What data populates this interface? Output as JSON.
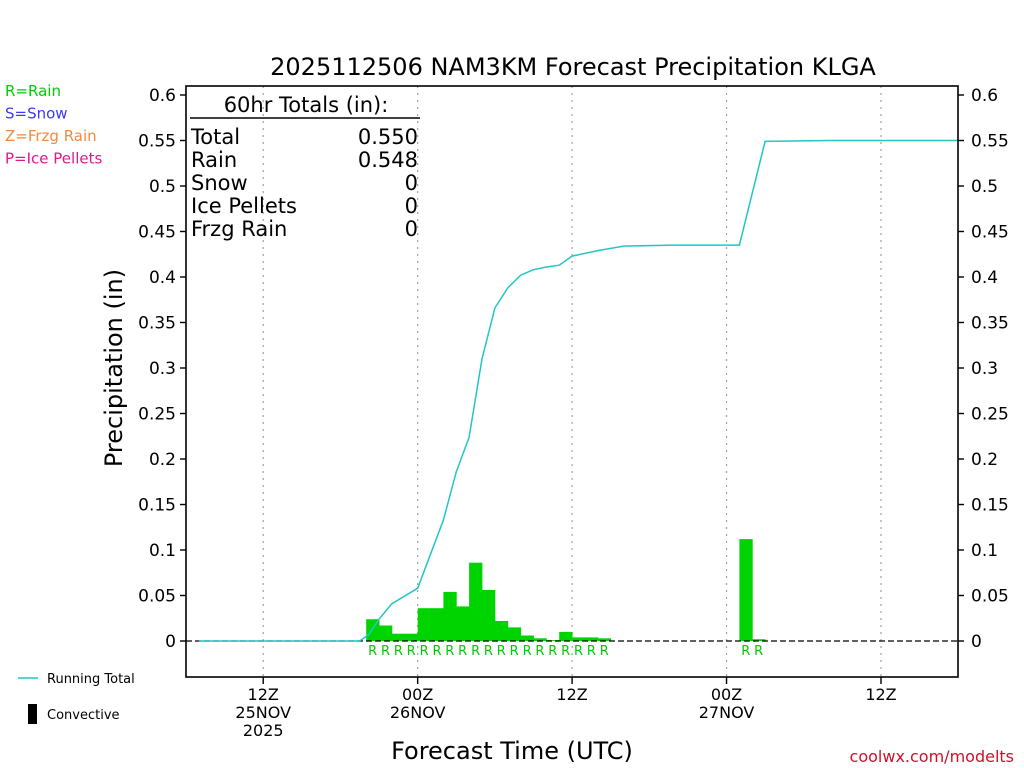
{
  "chart_data": {
    "type": "bar",
    "title": "2025112506 NAM3KM Forecast Precipitation KLGA",
    "xlabel": "Forecast Time (UTC)",
    "ylabel": "Precipitation (in)",
    "ylim": [
      -0.04,
      0.605
    ],
    "xlim_hours_from_run": [
      0,
      60
    ],
    "yticks": [
      "0",
      "0.05",
      "0.1",
      "0.15",
      "0.2",
      "0.25",
      "0.3",
      "0.35",
      "0.4",
      "0.45",
      "0.5",
      "0.55",
      "0.6"
    ],
    "ytick_values": [
      0,
      0.05,
      0.1,
      0.15,
      0.2,
      0.25,
      0.3,
      0.35,
      0.4,
      0.45,
      0.5,
      0.55,
      0.6
    ],
    "xticks": [
      {
        "hour": 6,
        "lines": [
          "12Z",
          "25NOV",
          "2025"
        ]
      },
      {
        "hour": 18,
        "lines": [
          "00Z",
          "26NOV"
        ]
      },
      {
        "hour": 30,
        "lines": [
          "12Z"
        ]
      },
      {
        "hour": 42,
        "lines": [
          "00Z",
          "27NOV"
        ]
      },
      {
        "hour": 54,
        "lines": [
          "12Z"
        ]
      }
    ],
    "bar_hours": [
      15,
      16,
      17,
      18,
      19,
      20,
      21,
      22,
      23,
      24,
      25,
      26,
      27,
      28,
      29,
      30,
      31,
      32,
      33,
      44,
      45
    ],
    "bar_values": [
      0.024,
      0.017,
      0.008,
      0.008,
      0.036,
      0.036,
      0.054,
      0.038,
      0.086,
      0.056,
      0.022,
      0.015,
      0.006,
      0.003,
      0.001,
      0.01,
      0.004,
      0.004,
      0.003,
      0.112,
      0.002
    ],
    "bar_types": [
      "R",
      "R",
      "R",
      "R",
      "R",
      "R",
      "R",
      "R",
      "R",
      "R",
      "R",
      "R",
      "R",
      "R",
      "R",
      "R",
      "R",
      "R",
      "R",
      "R",
      "R"
    ],
    "running_total": {
      "hours": [
        1,
        5,
        10,
        13.5,
        14.2,
        15,
        16,
        18,
        20,
        21,
        22,
        23,
        24,
        25,
        26,
        27,
        28,
        29,
        30,
        32,
        34,
        38,
        41,
        42,
        43,
        45,
        50,
        60
      ],
      "values": [
        0,
        0,
        0,
        0,
        0.007,
        0.024,
        0.041,
        0.058,
        0.133,
        0.186,
        0.224,
        0.31,
        0.366,
        0.388,
        0.402,
        0.408,
        0.411,
        0.413,
        0.423,
        0.429,
        0.434,
        0.435,
        0.435,
        0.435,
        0.435,
        0.549,
        0.55,
        0.55
      ]
    },
    "totals_box": {
      "header": "60hr Totals (in):",
      "rows": [
        {
          "label": "Total",
          "value": "0.550"
        },
        {
          "label": "Rain",
          "value": "0.548"
        },
        {
          "label": "Snow",
          "value": "0"
        },
        {
          "label": "Ice Pellets",
          "value": "0"
        },
        {
          "label": "Frzg Rain",
          "value": "0"
        }
      ]
    },
    "type_legend": [
      {
        "text": "R=Rain",
        "color": "#00cc00"
      },
      {
        "text": "S=Snow",
        "color": "#3a3af0"
      },
      {
        "text": "Z=Frzg Rain",
        "color": "#f08a3c"
      },
      {
        "text": "P=Ice Pellets",
        "color": "#e0188c"
      }
    ],
    "series_legend": [
      {
        "text": "Running Total",
        "color": "#22c6c6",
        "kind": "line"
      },
      {
        "text": "Convective",
        "color": "#000000",
        "kind": "bar"
      }
    ],
    "colors": {
      "bar": "#00d400",
      "line": "#22c6c6",
      "rain_label": "#00cc00",
      "axis": "#000000",
      "grid": "#a0a0a0",
      "credit": "#d0102a"
    },
    "credit": "coolwx.com/modelts"
  }
}
